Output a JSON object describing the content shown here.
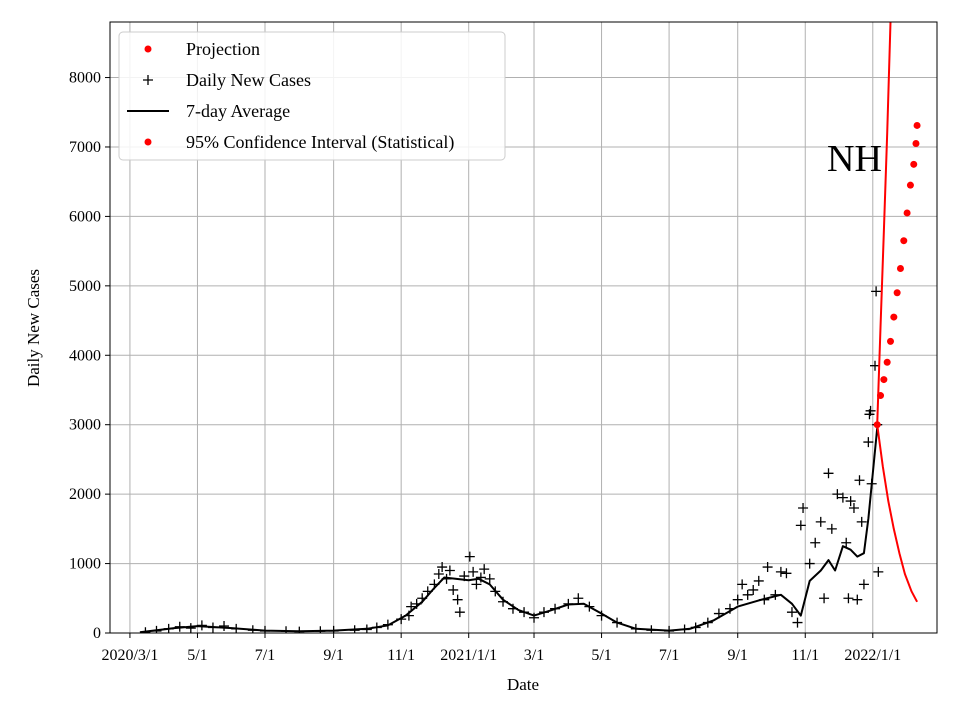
{
  "chart_data": {
    "type": "line",
    "title": "",
    "annotation": "NH",
    "xlabel": "Date",
    "ylabel": "Daily New Cases",
    "xlim": [
      "2020-02-12",
      "2022-02-28"
    ],
    "ylim": [
      0,
      8800
    ],
    "grid": true,
    "legend_position": "top-left",
    "x_ticks": [
      {
        "date": "2020-03-01",
        "label": "2020/3/1"
      },
      {
        "date": "2020-05-01",
        "label": "5/1"
      },
      {
        "date": "2020-07-01",
        "label": "7/1"
      },
      {
        "date": "2020-09-01",
        "label": "9/1"
      },
      {
        "date": "2020-11-01",
        "label": "11/1"
      },
      {
        "date": "2021-01-01",
        "label": "2021/1/1"
      },
      {
        "date": "2021-03-01",
        "label": "3/1"
      },
      {
        "date": "2021-05-01",
        "label": "5/1"
      },
      {
        "date": "2021-07-01",
        "label": "7/1"
      },
      {
        "date": "2021-09-01",
        "label": "9/1"
      },
      {
        "date": "2021-11-01",
        "label": "11/1"
      },
      {
        "date": "2022-01-01",
        "label": "2022/1/1"
      }
    ],
    "y_ticks": [
      0,
      1000,
      2000,
      3000,
      4000,
      5000,
      6000,
      7000,
      8000
    ],
    "legend": [
      {
        "label": "Projection",
        "marker": "dot",
        "color": "#ff0000"
      },
      {
        "label": "Daily New Cases",
        "marker": "plus",
        "color": "#000000"
      },
      {
        "label": "7-day Average",
        "marker": "line",
        "color": "#000000"
      },
      {
        "label": "95% Confidence Interval (Statistical)",
        "marker": "dot",
        "color": "#ff0000"
      }
    ],
    "series": [
      {
        "name": "Daily New Cases",
        "style": "plus",
        "color": "#000000",
        "points": [
          [
            "2020-03-15",
            10
          ],
          [
            "2020-03-25",
            30
          ],
          [
            "2020-04-05",
            60
          ],
          [
            "2020-04-15",
            90
          ],
          [
            "2020-04-25",
            70
          ],
          [
            "2020-05-05",
            110
          ],
          [
            "2020-05-15",
            80
          ],
          [
            "2020-05-25",
            100
          ],
          [
            "2020-06-05",
            60
          ],
          [
            "2020-06-20",
            40
          ],
          [
            "2020-07-01",
            30
          ],
          [
            "2020-07-20",
            25
          ],
          [
            "2020-08-01",
            20
          ],
          [
            "2020-08-20",
            25
          ],
          [
            "2020-09-01",
            30
          ],
          [
            "2020-09-20",
            40
          ],
          [
            "2020-10-01",
            50
          ],
          [
            "2020-10-10",
            80
          ],
          [
            "2020-10-20",
            120
          ],
          [
            "2020-11-01",
            200
          ],
          [
            "2020-11-08",
            250
          ],
          [
            "2020-11-10",
            380
          ],
          [
            "2020-11-15",
            420
          ],
          [
            "2020-11-20",
            500
          ],
          [
            "2020-11-25",
            600
          ],
          [
            "2020-12-01",
            700
          ],
          [
            "2020-12-05",
            850
          ],
          [
            "2020-12-08",
            950
          ],
          [
            "2020-12-12",
            780
          ],
          [
            "2020-12-15",
            900
          ],
          [
            "2020-12-18",
            620
          ],
          [
            "2020-12-22",
            480
          ],
          [
            "2020-12-24",
            300
          ],
          [
            "2020-12-28",
            820
          ],
          [
            "2021-01-02",
            1100
          ],
          [
            "2021-01-05",
            880
          ],
          [
            "2021-01-08",
            700
          ],
          [
            "2021-01-12",
            800
          ],
          [
            "2021-01-15",
            920
          ],
          [
            "2021-01-20",
            780
          ],
          [
            "2021-01-25",
            600
          ],
          [
            "2021-02-01",
            450
          ],
          [
            "2021-02-10",
            350
          ],
          [
            "2021-02-20",
            300
          ],
          [
            "2021-03-01",
            220
          ],
          [
            "2021-03-10",
            300
          ],
          [
            "2021-03-20",
            350
          ],
          [
            "2021-04-01",
            420
          ],
          [
            "2021-04-10",
            500
          ],
          [
            "2021-04-20",
            380
          ],
          [
            "2021-05-01",
            250
          ],
          [
            "2021-05-15",
            150
          ],
          [
            "2021-06-01",
            60
          ],
          [
            "2021-06-15",
            40
          ],
          [
            "2021-07-01",
            30
          ],
          [
            "2021-07-15",
            50
          ],
          [
            "2021-07-25",
            80
          ],
          [
            "2021-08-05",
            150
          ],
          [
            "2021-08-15",
            280
          ],
          [
            "2021-08-25",
            350
          ],
          [
            "2021-09-01",
            480
          ],
          [
            "2021-09-05",
            700
          ],
          [
            "2021-09-10",
            550
          ],
          [
            "2021-09-15",
            620
          ],
          [
            "2021-09-20",
            750
          ],
          [
            "2021-09-25",
            480
          ],
          [
            "2021-09-28",
            950
          ],
          [
            "2021-10-05",
            550
          ],
          [
            "2021-10-10",
            880
          ],
          [
            "2021-10-15",
            860
          ],
          [
            "2021-10-20",
            300
          ],
          [
            "2021-10-25",
            150
          ],
          [
            "2021-10-28",
            1550
          ],
          [
            "2021-10-30",
            1800
          ],
          [
            "2021-11-05",
            1000
          ],
          [
            "2021-11-10",
            1300
          ],
          [
            "2021-11-15",
            1600
          ],
          [
            "2021-11-18",
            500
          ],
          [
            "2021-11-22",
            2300
          ],
          [
            "2021-11-25",
            1500
          ],
          [
            "2021-11-30",
            2000
          ],
          [
            "2021-12-05",
            1950
          ],
          [
            "2021-12-08",
            1300
          ],
          [
            "2021-12-10",
            500
          ],
          [
            "2021-12-12",
            1900
          ],
          [
            "2021-12-15",
            1800
          ],
          [
            "2021-12-18",
            480
          ],
          [
            "2021-12-20",
            2200
          ],
          [
            "2021-12-22",
            1600
          ],
          [
            "2021-12-24",
            700
          ],
          [
            "2021-12-28",
            2750
          ],
          [
            "2021-12-29",
            3150
          ],
          [
            "2021-12-30",
            3200
          ],
          [
            "2021-12-31",
            2150
          ],
          [
            "2022-01-03",
            3850
          ],
          [
            "2022-01-04",
            4920
          ],
          [
            "2022-01-05",
            3000
          ],
          [
            "2022-01-06",
            880
          ]
        ]
      },
      {
        "name": "7-day Average",
        "style": "line",
        "color": "#000000",
        "points": [
          [
            "2020-03-10",
            10
          ],
          [
            "2020-04-10",
            70
          ],
          [
            "2020-05-01",
            100
          ],
          [
            "2020-06-01",
            70
          ],
          [
            "2020-07-01",
            35
          ],
          [
            "2020-08-01",
            25
          ],
          [
            "2020-09-01",
            35
          ],
          [
            "2020-10-01",
            60
          ],
          [
            "2020-10-20",
            110
          ],
          [
            "2020-11-05",
            250
          ],
          [
            "2020-11-20",
            450
          ],
          [
            "2020-12-01",
            650
          ],
          [
            "2020-12-10",
            800
          ],
          [
            "2020-12-20",
            780
          ],
          [
            "2021-01-01",
            760
          ],
          [
            "2021-01-10",
            780
          ],
          [
            "2021-01-20",
            700
          ],
          [
            "2021-02-01",
            480
          ],
          [
            "2021-02-15",
            330
          ],
          [
            "2021-03-01",
            250
          ],
          [
            "2021-03-15",
            320
          ],
          [
            "2021-04-01",
            410
          ],
          [
            "2021-04-15",
            420
          ],
          [
            "2021-05-01",
            280
          ],
          [
            "2021-05-15",
            150
          ],
          [
            "2021-06-01",
            60
          ],
          [
            "2021-07-01",
            35
          ],
          [
            "2021-07-20",
            60
          ],
          [
            "2021-08-10",
            180
          ],
          [
            "2021-09-01",
            380
          ],
          [
            "2021-09-20",
            470
          ],
          [
            "2021-10-10",
            550
          ],
          [
            "2021-10-20",
            420
          ],
          [
            "2021-10-28",
            250
          ],
          [
            "2021-11-05",
            750
          ],
          [
            "2021-11-15",
            900
          ],
          [
            "2021-11-22",
            1050
          ],
          [
            "2021-11-28",
            900
          ],
          [
            "2021-12-05",
            1250
          ],
          [
            "2021-12-12",
            1200
          ],
          [
            "2021-12-18",
            1100
          ],
          [
            "2021-12-24",
            1150
          ],
          [
            "2021-12-28",
            1650
          ],
          [
            "2022-01-01",
            2300
          ],
          [
            "2022-01-05",
            2950
          ]
        ]
      },
      {
        "name": "Projection",
        "style": "dots",
        "color": "#ff0000",
        "points": [
          [
            "2022-01-05",
            3000
          ],
          [
            "2022-01-08",
            3420
          ],
          [
            "2022-01-11",
            3650
          ],
          [
            "2022-01-14",
            3900
          ],
          [
            "2022-01-17",
            4200
          ],
          [
            "2022-01-20",
            4550
          ],
          [
            "2022-01-23",
            4900
          ],
          [
            "2022-01-26",
            5250
          ],
          [
            "2022-01-29",
            5650
          ],
          [
            "2022-02-01",
            6050
          ],
          [
            "2022-02-04",
            6450
          ],
          [
            "2022-02-07",
            6750
          ],
          [
            "2022-02-09",
            7050
          ],
          [
            "2022-02-10",
            7310
          ]
        ]
      },
      {
        "name": "95% CI Upper",
        "style": "line",
        "color": "#ff0000",
        "points": [
          [
            "2022-01-05",
            3000
          ],
          [
            "2022-01-08",
            4400
          ],
          [
            "2022-01-11",
            5800
          ],
          [
            "2022-01-14",
            7200
          ],
          [
            "2022-01-17",
            8800
          ]
        ]
      },
      {
        "name": "95% CI Lower",
        "style": "line",
        "color": "#ff0000",
        "points": [
          [
            "2022-01-05",
            3000
          ],
          [
            "2022-01-10",
            2400
          ],
          [
            "2022-01-15",
            1900
          ],
          [
            "2022-01-20",
            1500
          ],
          [
            "2022-01-25",
            1150
          ],
          [
            "2022-01-30",
            850
          ],
          [
            "2022-02-05",
            600
          ],
          [
            "2022-02-10",
            450
          ]
        ]
      }
    ]
  }
}
